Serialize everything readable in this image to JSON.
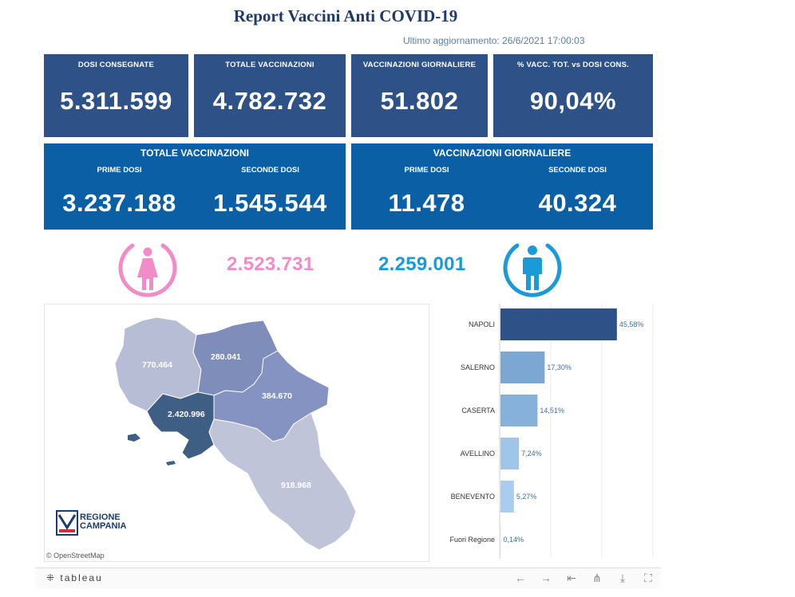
{
  "header": {
    "title": "Report Vaccini Anti COVID-19",
    "updated": "Ultimo aggiornamento: 26/6/2021 17:00:03"
  },
  "kpis": [
    {
      "label": "DOSI CONSEGNATE",
      "value": "5.311.599"
    },
    {
      "label": "TOTALE VACCINAZIONI",
      "value": "4.782.732"
    },
    {
      "label": "VACCINAZIONI GIORNALIERE",
      "value": "51.802"
    },
    {
      "label": "% VACC. TOT. vs DOSI CONS.",
      "value": "90,04%"
    }
  ],
  "panels": [
    {
      "title": "TOTALE VACCINAZIONI",
      "first_label": "PRIME DOSI",
      "first_value": "3.237.188",
      "second_label": "SECONDE DOSI",
      "second_value": "1.545.544"
    },
    {
      "title": "VACCINAZIONI GIORNALIERE",
      "first_label": "PRIME DOSI",
      "first_value": "11.478",
      "second_label": "SECONDE DOSI",
      "second_value": "40.324"
    }
  ],
  "gender": {
    "female_value": "2.523.731",
    "female_color": "#f28cc8",
    "male_value": "2.259.001",
    "male_color": "#1a9ad6"
  },
  "map": {
    "regions": [
      {
        "name": "Caserta",
        "value": "770.464",
        "color": "#b8bdd6"
      },
      {
        "name": "Benevento",
        "value": "280.041",
        "color": "#7f8dbb"
      },
      {
        "name": "Avellino",
        "value": "384.670",
        "color": "#8593c2"
      },
      {
        "name": "Napoli",
        "value": "2.420.996",
        "color": "#3f5e83"
      },
      {
        "name": "Salerno",
        "value": "918.968",
        "color": "#c0c4d8"
      }
    ],
    "attribution": "© OpenStreetMap",
    "logo_line1": "REGIONE",
    "logo_line2": "CAMPANIA"
  },
  "chart_data": {
    "type": "bar",
    "orientation": "horizontal",
    "categories": [
      "NAPOLI",
      "SALERNO",
      "CASERTA",
      "AVELLINO",
      "BENEVENTO",
      "Fuori Regione"
    ],
    "values": [
      45.58,
      17.3,
      14.51,
      7.24,
      5.27,
      0.14
    ],
    "value_labels": [
      "45,58%",
      "17,30%",
      "14,51%",
      "7,24%",
      "5,27%",
      "0,14%"
    ],
    "colors": [
      "#2e5287",
      "#7ba7d2",
      "#86b1db",
      "#9fc6e8",
      "#a8cdee",
      "#c9e0f4"
    ],
    "xlim": [
      0,
      60
    ],
    "grid": true
  },
  "toolbar": {
    "logo": "tableau",
    "icons": [
      "undo-icon",
      "redo-icon",
      "revert-icon",
      "share-icon",
      "download-icon",
      "fullscreen-icon"
    ]
  }
}
